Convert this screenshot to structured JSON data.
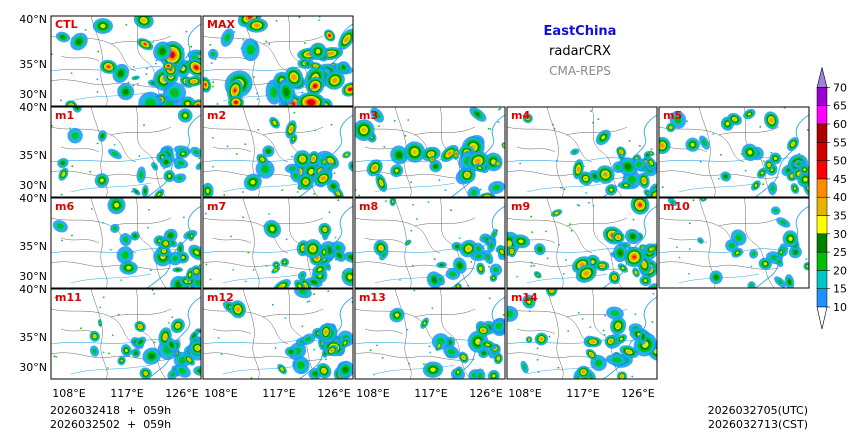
{
  "header": {
    "region": "EastChina",
    "variable": "radarCRX",
    "system": "CMA-REPS",
    "region_color": "#1010d0",
    "system_color": "#888888"
  },
  "panels": [
    {
      "label": "CTL",
      "intensity": 0.9
    },
    {
      "label": "MAX",
      "intensity": 1.0
    },
    {
      "label": "m1",
      "intensity": 0.45
    },
    {
      "label": "m2",
      "intensity": 0.6
    },
    {
      "label": "m3",
      "intensity": 0.65
    },
    {
      "label": "m4",
      "intensity": 0.6
    },
    {
      "label": "m5",
      "intensity": 0.55
    },
    {
      "label": "m6",
      "intensity": 0.5
    },
    {
      "label": "m7",
      "intensity": 0.55
    },
    {
      "label": "m8",
      "intensity": 0.5
    },
    {
      "label": "m9",
      "intensity": 0.75
    },
    {
      "label": "m10",
      "intensity": 0.35
    },
    {
      "label": "m11",
      "intensity": 0.6
    },
    {
      "label": "m12",
      "intensity": 0.65
    },
    {
      "label": "m13",
      "intensity": 0.55
    },
    {
      "label": "m14",
      "intensity": 0.7
    }
  ],
  "axes": {
    "lat_labels": [
      "40°N",
      "35°N",
      "30°N"
    ],
    "lon_labels": [
      "108°E",
      "117°E",
      "126°E"
    ]
  },
  "colorbar": {
    "levels": [
      "10",
      "15",
      "20",
      "25",
      "30",
      "35",
      "40",
      "45",
      "50",
      "55",
      "60",
      "65",
      "70"
    ],
    "colors": [
      "#1e90ff",
      "#00c8c8",
      "#00c000",
      "#008000",
      "#ffff00",
      "#e6b400",
      "#ff8c00",
      "#ff0000",
      "#d00000",
      "#b00000",
      "#ff00ff",
      "#9b00d3",
      "#a080d8"
    ]
  },
  "footer": {
    "init_line1": "2026032418  +  059h",
    "init_line2": "2026032502  +  059h",
    "valid_utc": "2026032705(UTC)",
    "valid_cst": "2026032713(CST)"
  }
}
